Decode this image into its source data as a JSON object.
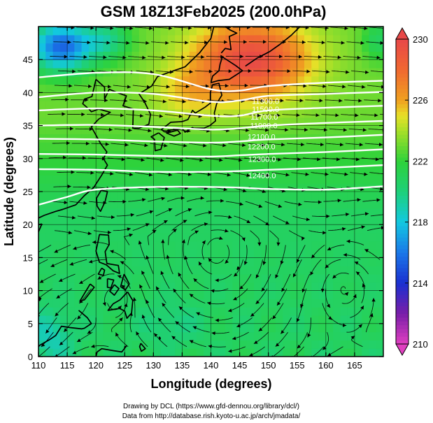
{
  "chart_data": {
    "type": "heatmap",
    "title": "GSM 18Z13Feb2025 (200.0hPa)",
    "xlabel": "Longitude (degrees)",
    "ylabel": "Latitude  (degrees)",
    "xlim": [
      110,
      170
    ],
    "ylim": [
      0,
      50
    ],
    "x_ticks": [
      110,
      115,
      120,
      125,
      130,
      135,
      140,
      145,
      150,
      155,
      160,
      165
    ],
    "y_ticks": [
      0,
      5,
      10,
      15,
      20,
      25,
      30,
      35,
      40,
      45
    ],
    "colorbar": {
      "min": 210,
      "max": 230,
      "ticks": [
        210,
        214,
        218,
        222,
        226,
        230
      ]
    },
    "color_stops": [
      {
        "value": 210,
        "color": "#e040c0"
      },
      {
        "value": 212,
        "color": "#7a1ea8"
      },
      {
        "value": 214,
        "color": "#1a2fd0"
      },
      {
        "value": 216,
        "color": "#1a78e8"
      },
      {
        "value": 218,
        "color": "#12c8e0"
      },
      {
        "value": 220,
        "color": "#1ed07a"
      },
      {
        "value": 222,
        "color": "#2ed23a"
      },
      {
        "value": 224,
        "color": "#a8e028"
      },
      {
        "value": 225,
        "color": "#e8e028"
      },
      {
        "value": 226,
        "color": "#f0a020"
      },
      {
        "value": 228,
        "color": "#f06830"
      },
      {
        "value": 230,
        "color": "#e84848"
      }
    ],
    "contours": [
      {
        "label": "11300.0",
        "points": [
          [
            110,
            42.3
          ],
          [
            120,
            43.0
          ],
          [
            130,
            42.8
          ],
          [
            140,
            40.5
          ],
          [
            145,
            40.3
          ],
          [
            150,
            41.0
          ],
          [
            160,
            41.5
          ],
          [
            170,
            41.8
          ]
        ]
      },
      {
        "label": "11500.0",
        "points": [
          [
            110,
            39.3
          ],
          [
            120,
            40.0
          ],
          [
            130,
            39.8
          ],
          [
            140,
            38.6
          ],
          [
            145,
            38.8
          ],
          [
            150,
            39.5
          ],
          [
            160,
            39.8
          ],
          [
            170,
            40.1
          ]
        ]
      },
      {
        "label": "11700.0",
        "points": [
          [
            110,
            37.3
          ],
          [
            120,
            37.6
          ],
          [
            130,
            37.3
          ],
          [
            140,
            36.5
          ],
          [
            145,
            36.5
          ],
          [
            150,
            37.3
          ],
          [
            160,
            37.7
          ],
          [
            170,
            38.0
          ]
        ]
      },
      {
        "label": "11900.0",
        "points": [
          [
            110,
            35.0
          ],
          [
            120,
            35.1
          ],
          [
            130,
            34.8
          ],
          [
            140,
            34.4
          ],
          [
            145,
            34.6
          ],
          [
            150,
            35.0
          ],
          [
            160,
            35.4
          ],
          [
            170,
            35.7
          ]
        ]
      },
      {
        "label": "12100.0",
        "points": [
          [
            110,
            33.0
          ],
          [
            120,
            32.9
          ],
          [
            130,
            32.6
          ],
          [
            140,
            32.4
          ],
          [
            145,
            32.6
          ],
          [
            150,
            32.9
          ],
          [
            160,
            33.2
          ],
          [
            170,
            33.6
          ]
        ]
      },
      {
        "label": "12200.0",
        "points": [
          [
            110,
            30.7
          ],
          [
            120,
            30.6
          ],
          [
            130,
            30.4
          ],
          [
            140,
            30.3
          ],
          [
            145,
            30.5
          ],
          [
            150,
            30.7
          ],
          [
            160,
            31.0
          ],
          [
            170,
            31.4
          ]
        ]
      },
      {
        "label": "12300.0",
        "points": [
          [
            110,
            28.4
          ],
          [
            120,
            28.3
          ],
          [
            130,
            28.0
          ],
          [
            140,
            28.0
          ],
          [
            145,
            28.1
          ],
          [
            150,
            28.3
          ],
          [
            160,
            28.6
          ],
          [
            170,
            29.0
          ]
        ]
      },
      {
        "label": "12400.0",
        "points": [
          [
            110,
            23.0
          ],
          [
            115,
            24.2
          ],
          [
            120,
            25.3
          ],
          [
            130,
            25.7
          ],
          [
            140,
            25.7
          ],
          [
            145,
            25.6
          ],
          [
            150,
            25.4
          ],
          [
            160,
            25.3
          ],
          [
            170,
            25.8
          ]
        ]
      }
    ],
    "contour_labels": [
      {
        "text": "11300.0",
        "lon": 149.5,
        "lat": 38.3
      },
      {
        "text": "11500.0",
        "lon": 149.5,
        "lat": 37.1
      },
      {
        "text": "11700.0",
        "lon": 149.3,
        "lat": 35.9
      },
      {
        "text": "11900.0",
        "lon": 149.2,
        "lat": 34.6
      },
      {
        "text": "12100.0",
        "lon": 148.8,
        "lat": 32.9
      },
      {
        "text": "12200.0",
        "lon": 148.8,
        "lat": 31.4
      },
      {
        "text": "12300.0",
        "lon": 148.9,
        "lat": 29.5
      },
      {
        "text": "12400.0",
        "lon": 148.9,
        "lat": 27.0
      }
    ]
  },
  "credits": {
    "line1": "Drawing by DCL (https://www.gfd-dennou.org/library/dcl/)",
    "line2": "Data from http://database.rish.kyoto-u.ac.jp/arch/jmadata/"
  }
}
